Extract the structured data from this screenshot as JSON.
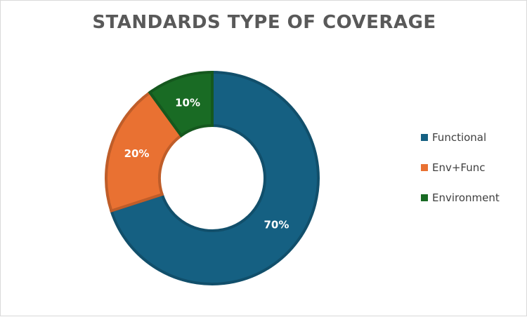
{
  "chart_data": {
    "type": "pie",
    "style": "donut",
    "title": "STANDARDS TYPE OF COVERAGE",
    "categories": [
      "Functional",
      "Env+Func",
      "Environment"
    ],
    "values": [
      70,
      20,
      10
    ],
    "labels": [
      "70%",
      "20%",
      "10%"
    ],
    "colors": [
      "#156082",
      "#E97132",
      "#196B24"
    ],
    "legend_position": "right"
  }
}
